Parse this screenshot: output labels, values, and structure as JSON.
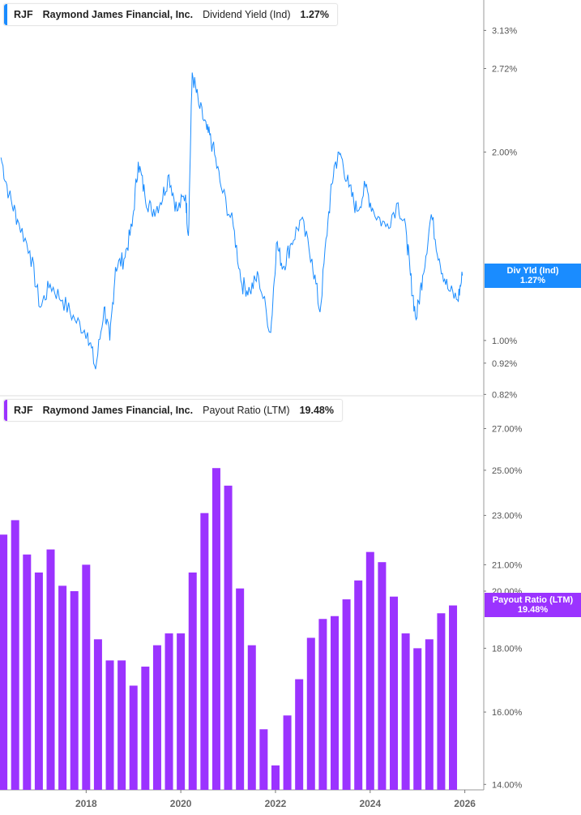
{
  "colors": {
    "yield": "#1a8cff",
    "payout": "#9b33ff",
    "axis": "#999999"
  },
  "top_legend": {
    "ticker": "RJF",
    "company": "Raymond James Financial, Inc.",
    "metric": "Dividend Yield (Ind)",
    "value": "1.27%"
  },
  "bottom_legend": {
    "ticker": "RJF",
    "company": "Raymond James Financial, Inc.",
    "metric": "Payout Ratio (LTM)",
    "value": "19.48%"
  },
  "top_tag": {
    "label": "Div Yld (Ind)",
    "value": "1.27%"
  },
  "bottom_tag": {
    "label": "Payout Ratio (LTM)",
    "value": "19.48%"
  },
  "chart_data": [
    {
      "type": "line",
      "series": [
        {
          "name": "Dividend Yield (Ind)"
        }
      ],
      "yscale": "log",
      "ylim": [
        0.816,
        3.5
      ],
      "y_ticks": [
        {
          "v": 3.13,
          "label": "3.13%"
        },
        {
          "v": 2.72,
          "label": "2.72%"
        },
        {
          "v": 2.0,
          "label": "2.00%"
        },
        {
          "v": 1.0,
          "label": "1.00%"
        },
        {
          "v": 0.92,
          "label": "0.92%"
        },
        {
          "v": 0.82,
          "label": "0.82%"
        }
      ],
      "x": [
        2016.2,
        2016.37,
        2016.55,
        2016.81,
        2017.03,
        2017.24,
        2017.5,
        2017.76,
        2018.03,
        2018.2,
        2018.38,
        2018.5,
        2018.62,
        2018.8,
        2018.97,
        2019.1,
        2019.24,
        2019.38,
        2019.57,
        2019.75,
        2019.92,
        2020.1,
        2020.16,
        2020.24,
        2020.38,
        2020.55,
        2020.67,
        2020.85,
        2021.11,
        2021.29,
        2021.46,
        2021.64,
        2021.9,
        2022.02,
        2022.16,
        2022.33,
        2022.54,
        2022.77,
        2022.94,
        2023.11,
        2023.24,
        2023.37,
        2023.55,
        2023.72,
        2023.9,
        2024.07,
        2024.33,
        2024.59,
        2024.77,
        2024.85,
        2024.97,
        2025.11,
        2025.29,
        2025.46,
        2025.64,
        2025.85,
        2025.95
      ],
      "y": [
        1.96,
        1.71,
        1.56,
        1.39,
        1.13,
        1.23,
        1.16,
        1.08,
        1.03,
        0.9,
        1.13,
        1.0,
        1.31,
        1.35,
        1.52,
        1.93,
        1.71,
        1.61,
        1.66,
        1.84,
        1.61,
        1.71,
        1.47,
        2.68,
        2.38,
        2.17,
        2.05,
        1.76,
        1.52,
        1.23,
        1.2,
        1.27,
        1.03,
        1.43,
        1.31,
        1.43,
        1.56,
        1.35,
        1.11,
        1.56,
        1.9,
        1.99,
        1.76,
        1.61,
        1.76,
        1.61,
        1.52,
        1.66,
        1.47,
        1.27,
        1.08,
        1.27,
        1.59,
        1.35,
        1.21,
        1.16,
        1.27
      ]
    },
    {
      "type": "bar",
      "series": [
        {
          "name": "Payout Ratio (LTM)"
        }
      ],
      "yscale": "log",
      "ylim": [
        13.86,
        28.6
      ],
      "y_ticks": [
        {
          "v": 27,
          "label": "27.00%"
        },
        {
          "v": 25,
          "label": "25.00%"
        },
        {
          "v": 23,
          "label": "23.00%"
        },
        {
          "v": 21,
          "label": "21.00%"
        },
        {
          "v": 20,
          "label": "20.00%"
        },
        {
          "v": 18,
          "label": "18.00%"
        },
        {
          "v": 16,
          "label": "16.00%"
        },
        {
          "v": 14,
          "label": "14.00%"
        }
      ],
      "x_ticks": [
        {
          "v": 2018,
          "label": "2018"
        },
        {
          "v": 2020,
          "label": "2020"
        },
        {
          "v": 2022,
          "label": "2022"
        },
        {
          "v": 2024,
          "label": "2024"
        },
        {
          "v": 2026,
          "label": "2026"
        }
      ],
      "xlim": [
        2016.18,
        2026.4
      ],
      "x_start": 2016.25,
      "x_step": 0.25,
      "values": [
        22.2,
        22.8,
        21.4,
        20.7,
        21.6,
        20.2,
        20.0,
        21.0,
        18.3,
        17.6,
        17.6,
        16.8,
        17.4,
        18.1,
        18.5,
        18.5,
        20.7,
        23.1,
        25.1,
        24.3,
        20.1,
        18.1,
        15.5,
        14.5,
        15.9,
        17.0,
        18.35,
        19.0,
        19.1,
        19.7,
        20.4,
        21.5,
        21.1,
        19.8,
        18.5,
        18.0,
        18.3,
        19.2,
        19.48
      ]
    }
  ]
}
